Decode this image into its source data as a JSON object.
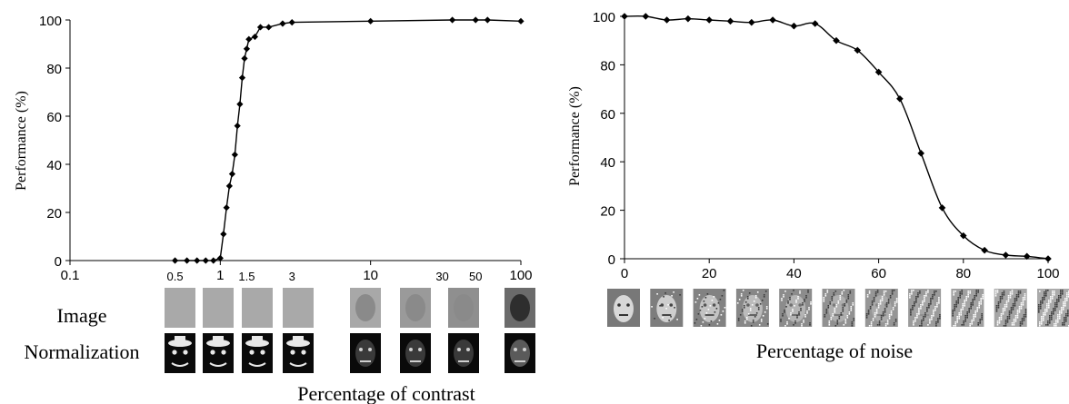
{
  "chart_data": [
    {
      "type": "line",
      "xscale": "log",
      "xlim": [
        0.1,
        100
      ],
      "ylim": [
        0,
        100
      ],
      "ylabel": "Performance (%)",
      "xlabel": "Percentage of contrast",
      "xticks": [
        0.1,
        1,
        10,
        100
      ],
      "xtick_labels": [
        "0.1",
        "1",
        "10",
        "100"
      ],
      "xticks_small": [
        0.5,
        1.5,
        3,
        30,
        50
      ],
      "xtick_small_labels": [
        "0.5",
        "1.5",
        "3",
        "30",
        "50"
      ],
      "yticks": [
        0,
        20,
        40,
        60,
        80,
        100
      ],
      "ytick_labels": [
        "0",
        "20",
        "40",
        "60",
        "80",
        "100"
      ],
      "grid": false,
      "series": [
        {
          "marker": "diamond",
          "color": "#000000",
          "points": [
            [
              0.5,
              0
            ],
            [
              0.6,
              0
            ],
            [
              0.7,
              0
            ],
            [
              0.8,
              0
            ],
            [
              0.9,
              0
            ],
            [
              1.0,
              1
            ],
            [
              1.05,
              11
            ],
            [
              1.1,
              22
            ],
            [
              1.15,
              31
            ],
            [
              1.2,
              36
            ],
            [
              1.25,
              44
            ],
            [
              1.3,
              56
            ],
            [
              1.35,
              65
            ],
            [
              1.4,
              76
            ],
            [
              1.45,
              84
            ],
            [
              1.5,
              88
            ],
            [
              1.55,
              92
            ],
            [
              1.7,
              93
            ],
            [
              1.85,
              97
            ],
            [
              2.1,
              97
            ],
            [
              2.6,
              98.5
            ],
            [
              3.0,
              99
            ],
            [
              10,
              99.5
            ],
            [
              35,
              100
            ],
            [
              50,
              100
            ],
            [
              60,
              100
            ],
            [
              100,
              99.5
            ]
          ]
        }
      ],
      "image_rows": {
        "image_label": "Image",
        "normalization_label": "Normalization",
        "contrast_levels": [
          0.5,
          1,
          1.5,
          3,
          10,
          30,
          50,
          100
        ]
      }
    },
    {
      "type": "line",
      "xlim": [
        0,
        100
      ],
      "ylim": [
        0,
        100
      ],
      "ylabel": "Performance (%)",
      "xlabel": "Percentage of noise",
      "xticks": [
        0,
        20,
        40,
        60,
        80,
        100
      ],
      "xtick_labels": [
        "0",
        "20",
        "40",
        "60",
        "80",
        "100"
      ],
      "yticks": [
        0,
        20,
        40,
        60,
        80,
        100
      ],
      "ytick_labels": [
        "0",
        "20",
        "40",
        "60",
        "80",
        "100"
      ],
      "grid": false,
      "series": [
        {
          "marker": "diamond",
          "color": "#000000",
          "points": [
            [
              0,
              100
            ],
            [
              5,
              100
            ],
            [
              10,
              98.5
            ],
            [
              15,
              99
            ],
            [
              20,
              98.5
            ],
            [
              25,
              98
            ],
            [
              30,
              97.5
            ],
            [
              35,
              98.5
            ],
            [
              40,
              96
            ],
            [
              45,
              97
            ],
            [
              50,
              90
            ],
            [
              55,
              86
            ],
            [
              60,
              77
            ],
            [
              65,
              66
            ],
            [
              70,
              43.5
            ],
            [
              75,
              21
            ],
            [
              80,
              9.5
            ],
            [
              85,
              3.5
            ],
            [
              90,
              1.5
            ],
            [
              95,
              1
            ],
            [
              100,
              0
            ]
          ]
        }
      ],
      "image_rows": {
        "noise_levels": [
          0,
          10,
          20,
          30,
          40,
          50,
          60,
          70,
          80,
          90,
          100
        ]
      }
    }
  ]
}
